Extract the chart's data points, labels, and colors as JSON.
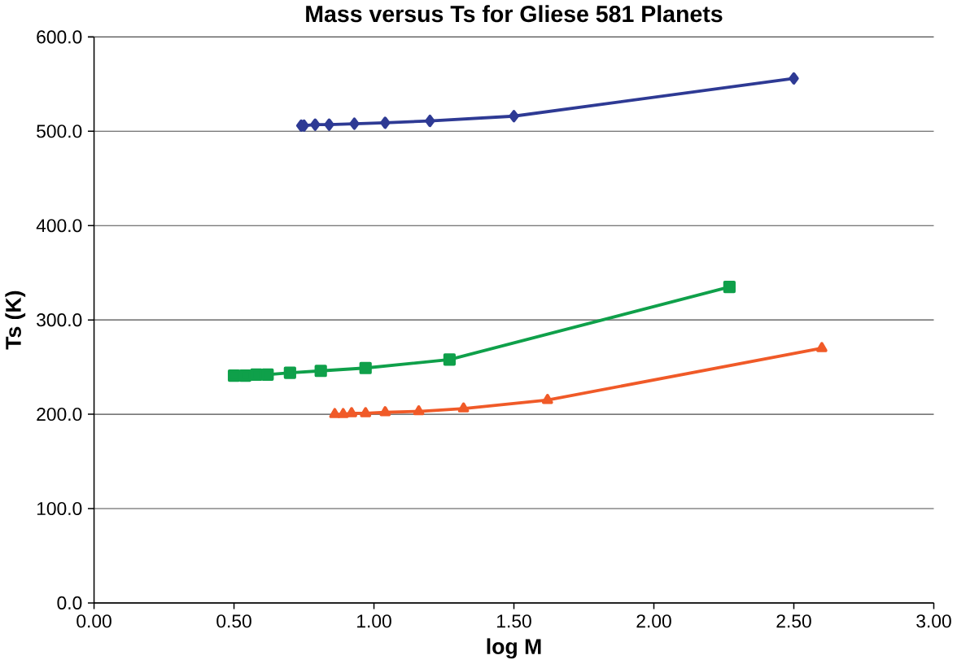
{
  "chart_data": {
    "type": "line",
    "title": "Mass versus Ts for Gliese 581 Planets",
    "xlabel": "log M",
    "ylabel": "Ts (K)",
    "xlim": [
      0,
      3
    ],
    "ylim": [
      0,
      600
    ],
    "xticks": [
      {
        "value": 0,
        "label": "0.00"
      },
      {
        "value": 0.5,
        "label": "0.50"
      },
      {
        "value": 1,
        "label": "1.00"
      },
      {
        "value": 1.5,
        "label": "1.50"
      },
      {
        "value": 2,
        "label": "2.00"
      },
      {
        "value": 2.5,
        "label": "2.50"
      },
      {
        "value": 3,
        "label": "3.00"
      }
    ],
    "yticks": [
      {
        "value": 0,
        "label": "0.0"
      },
      {
        "value": 100,
        "label": "100.0"
      },
      {
        "value": 200,
        "label": "200.0"
      },
      {
        "value": 300,
        "label": "300.0"
      },
      {
        "value": 400,
        "label": "400.0"
      },
      {
        "value": 500,
        "label": "500.0"
      },
      {
        "value": 600,
        "label": "600.0"
      }
    ],
    "grid": "y",
    "series": [
      {
        "color": "#2e3a94",
        "marker": "diamond",
        "x": [
          0.74,
          0.75,
          0.79,
          0.84,
          0.93,
          1.04,
          1.2,
          1.5,
          2.5
        ],
        "values": [
          506,
          506,
          507,
          507,
          508,
          509,
          511,
          516,
          556
        ]
      },
      {
        "color": "#0fa04a",
        "marker": "square",
        "x": [
          0.5,
          0.54,
          0.58,
          0.62,
          0.7,
          0.81,
          0.97,
          1.27,
          2.27
        ],
        "values": [
          241,
          241,
          242,
          242,
          244,
          246,
          249,
          258,
          335
        ]
      },
      {
        "color": "#f05a28",
        "marker": "triangle",
        "x": [
          0.86,
          0.89,
          0.92,
          0.97,
          1.04,
          1.16,
          1.32,
          1.62,
          2.6
        ],
        "values": [
          200,
          200,
          201,
          201,
          202,
          203,
          206,
          215,
          270
        ]
      }
    ]
  }
}
